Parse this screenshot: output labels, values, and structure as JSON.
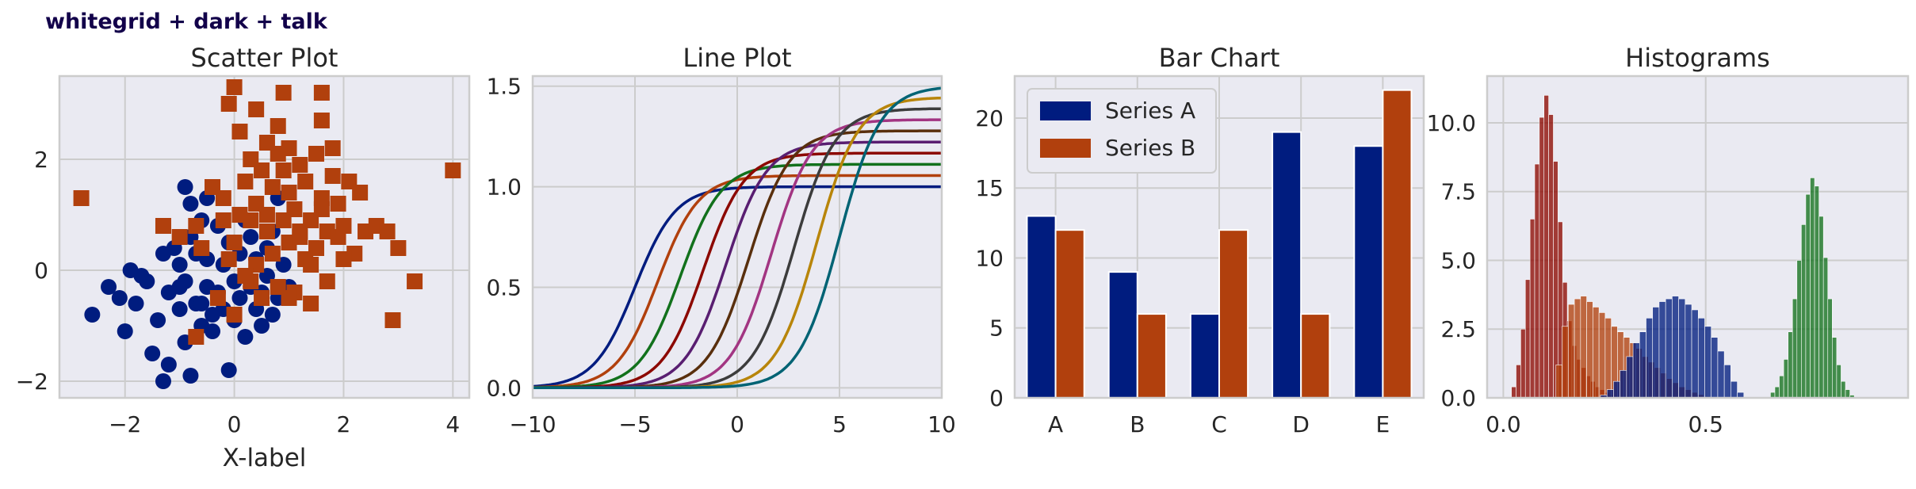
{
  "figure_title": "whitegrid + dark + talk",
  "colors": {
    "background": "#eaeaf2",
    "grid": "#cccccc",
    "spine": "#cccccc",
    "text": "#262626",
    "title_color": "#12004a",
    "palette": [
      "#001c7f",
      "#b1400d",
      "#12711c",
      "#8c0800",
      "#591e71",
      "#b8850a",
      "#a23582",
      "#3c3c3c",
      "#b8850a",
      "#006374"
    ]
  },
  "chart_data": [
    {
      "type": "scatter",
      "title": "Scatter Plot",
      "xlabel": "X-label",
      "ylabel": "",
      "xlim": [
        -3.2,
        4.3
      ],
      "ylim": [
        -2.3,
        3.5
      ],
      "xticks": [
        -2,
        0,
        2,
        4
      ],
      "xtick_labels": [
        "−2",
        "0",
        "2",
        "4"
      ],
      "yticks": [
        -2,
        0,
        2
      ],
      "ytick_labels": [
        "−2",
        "0",
        "2"
      ],
      "grid": true,
      "series": [
        {
          "marker": "circle",
          "color": "#001c7f",
          "points": [
            [
              -2.6,
              -0.8
            ],
            [
              -2.1,
              -0.5
            ],
            [
              -2.0,
              -1.1
            ],
            [
              -1.8,
              -0.6
            ],
            [
              -1.6,
              -0.2
            ],
            [
              -1.5,
              -1.5
            ],
            [
              -1.4,
              -0.9
            ],
            [
              -1.3,
              -2.0
            ],
            [
              -1.2,
              -1.7
            ],
            [
              -1.2,
              -0.4
            ],
            [
              -1.1,
              0.4
            ],
            [
              -1.0,
              -0.7
            ],
            [
              -1.0,
              0.1
            ],
            [
              -0.9,
              -1.3
            ],
            [
              -0.9,
              -0.2
            ],
            [
              -0.8,
              -1.9
            ],
            [
              -0.8,
              0.6
            ],
            [
              -0.8,
              1.2
            ],
            [
              -0.7,
              -0.6
            ],
            [
              -0.7,
              0.3
            ],
            [
              -0.6,
              -1.0
            ],
            [
              -0.6,
              0.9
            ],
            [
              -0.5,
              -0.3
            ],
            [
              -0.5,
              0.2
            ],
            [
              -0.4,
              -0.8
            ],
            [
              -0.4,
              -1.1
            ],
            [
              -0.3,
              0.8
            ],
            [
              -0.3,
              -0.4
            ],
            [
              -0.2,
              0.1
            ],
            [
              -0.2,
              -0.7
            ],
            [
              -0.1,
              -1.8
            ],
            [
              -0.1,
              0.5
            ],
            [
              0.0,
              -0.2
            ],
            [
              0.0,
              -0.9
            ],
            [
              0.1,
              0.3
            ],
            [
              0.1,
              -0.5
            ],
            [
              0.2,
              -1.2
            ],
            [
              0.2,
              0.9
            ],
            [
              0.3,
              -0.3
            ],
            [
              0.3,
              0.6
            ],
            [
              0.4,
              -0.7
            ],
            [
              0.4,
              0.2
            ],
            [
              0.5,
              -0.4
            ],
            [
              0.5,
              -1.0
            ],
            [
              0.6,
              0.4
            ],
            [
              0.6,
              -0.1
            ],
            [
              0.7,
              -0.8
            ],
            [
              0.7,
              0.7
            ],
            [
              0.8,
              1.3
            ],
            [
              0.8,
              -0.5
            ],
            [
              0.9,
              0.1
            ],
            [
              1.0,
              -0.3
            ],
            [
              -1.3,
              0.3
            ],
            [
              -1.7,
              -0.1
            ],
            [
              -2.3,
              -0.3
            ],
            [
              -1.9,
              0.0
            ],
            [
              -0.9,
              1.5
            ],
            [
              -0.5,
              1.3
            ],
            [
              -1.0,
              -0.3
            ],
            [
              -0.6,
              -0.6
            ]
          ]
        },
        {
          "marker": "square",
          "color": "#b1400d",
          "points": [
            [
              -2.8,
              1.3
            ],
            [
              -1.3,
              0.8
            ],
            [
              -1.0,
              0.6
            ],
            [
              -0.7,
              0.8
            ],
            [
              -0.7,
              -1.2
            ],
            [
              -0.6,
              0.4
            ],
            [
              -0.4,
              1.5
            ],
            [
              -0.3,
              -0.5
            ],
            [
              -0.2,
              1.3
            ],
            [
              -0.1,
              0.2
            ],
            [
              -0.1,
              3.0
            ],
            [
              0.0,
              0.5
            ],
            [
              0.0,
              -0.8
            ],
            [
              0.0,
              3.3
            ],
            [
              0.1,
              2.5
            ],
            [
              0.1,
              1.0
            ],
            [
              0.2,
              1.6
            ],
            [
              0.3,
              0.9
            ],
            [
              0.3,
              -0.2
            ],
            [
              0.3,
              2.0
            ],
            [
              0.4,
              1.2
            ],
            [
              0.4,
              0.1
            ],
            [
              0.4,
              2.9
            ],
            [
              0.5,
              1.8
            ],
            [
              0.5,
              -0.5
            ],
            [
              0.6,
              0.7
            ],
            [
              0.6,
              2.3
            ],
            [
              0.6,
              1.0
            ],
            [
              0.7,
              1.5
            ],
            [
              0.7,
              0.3
            ],
            [
              0.8,
              2.1
            ],
            [
              0.8,
              -0.3
            ],
            [
              0.9,
              1.8
            ],
            [
              0.9,
              0.9
            ],
            [
              0.9,
              3.2
            ],
            [
              1.0,
              0.5
            ],
            [
              1.0,
              1.4
            ],
            [
              1.0,
              2.2
            ],
            [
              1.1,
              -0.4
            ],
            [
              1.1,
              1.1
            ],
            [
              1.2,
              0.7
            ],
            [
              1.2,
              1.9
            ],
            [
              1.3,
              0.2
            ],
            [
              1.3,
              1.6
            ],
            [
              1.4,
              -0.6
            ],
            [
              1.4,
              0.9
            ],
            [
              1.5,
              2.1
            ],
            [
              1.5,
              0.4
            ],
            [
              1.6,
              1.3
            ],
            [
              1.6,
              2.7
            ],
            [
              1.6,
              3.2
            ],
            [
              1.7,
              0.7
            ],
            [
              1.7,
              -0.2
            ],
            [
              1.8,
              1.7
            ],
            [
              1.8,
              2.2
            ],
            [
              1.9,
              0.6
            ],
            [
              1.9,
              1.2
            ],
            [
              2.0,
              0.8
            ],
            [
              2.1,
              1.6
            ],
            [
              2.2,
              0.3
            ],
            [
              2.3,
              1.4
            ],
            [
              2.4,
              0.7
            ],
            [
              2.6,
              0.8
            ],
            [
              2.8,
              0.7
            ],
            [
              2.9,
              -0.9
            ],
            [
              3.0,
              0.4
            ],
            [
              3.3,
              -0.2
            ],
            [
              4.0,
              1.8
            ],
            [
              1.6,
              1.1
            ],
            [
              1.2,
              0.6
            ],
            [
              2.0,
              0.2
            ],
            [
              1.4,
              0.1
            ],
            [
              0.2,
              -0.1
            ],
            [
              -0.2,
              0.9
            ],
            [
              0.8,
              2.6
            ],
            [
              1.0,
              -0.5
            ]
          ]
        }
      ]
    },
    {
      "type": "line",
      "title": "Line Plot",
      "xlabel": "",
      "ylabel": "",
      "xlim": [
        -10,
        10
      ],
      "ylim": [
        -0.05,
        1.55
      ],
      "xticks": [
        -10,
        -5,
        0,
        5,
        10
      ],
      "xtick_labels": [
        "−10",
        "−5",
        "0",
        "5",
        "10"
      ],
      "yticks": [
        0.0,
        0.5,
        1.0,
        1.5
      ],
      "ytick_labels": [
        "0.0",
        "0.5",
        "1.0",
        "1.5"
      ],
      "grid": true,
      "series": [
        {
          "color": "#001c7f",
          "amplitude": 1.0,
          "center": -5.0
        },
        {
          "color": "#b1400d",
          "amplitude": 1.0556,
          "center": -3.889
        },
        {
          "color": "#12711c",
          "amplitude": 1.1111,
          "center": -2.778
        },
        {
          "color": "#8c0800",
          "amplitude": 1.1667,
          "center": -1.667
        },
        {
          "color": "#591e71",
          "amplitude": 1.2222,
          "center": -0.556
        },
        {
          "color": "#592f0d",
          "amplitude": 1.2778,
          "center": 0.556
        },
        {
          "color": "#a23582",
          "amplitude": 1.3333,
          "center": 1.667
        },
        {
          "color": "#3c3c3c",
          "amplitude": 1.3889,
          "center": 2.778
        },
        {
          "color": "#b8850a",
          "amplitude": 1.4444,
          "center": 3.889
        },
        {
          "color": "#006374",
          "amplitude": 1.5,
          "center": 5.0
        }
      ]
    },
    {
      "type": "bar",
      "title": "Bar Chart",
      "xlabel": "",
      "ylabel": "",
      "categories": [
        "A",
        "B",
        "C",
        "D",
        "E"
      ],
      "ylim": [
        0,
        23
      ],
      "yticks": [
        0,
        5,
        10,
        15,
        20
      ],
      "ytick_labels": [
        "0",
        "5",
        "10",
        "15",
        "20"
      ],
      "grid": true,
      "legend_position": "top-left",
      "series": [
        {
          "name": "Series A",
          "color": "#001c7f",
          "values": [
            13,
            9,
            6,
            19,
            18
          ]
        },
        {
          "name": "Series B",
          "color": "#b1400d",
          "values": [
            12,
            6,
            12,
            6,
            22
          ]
        }
      ]
    },
    {
      "type": "histogram",
      "title": "Histograms",
      "xlabel": "",
      "ylabel": "",
      "xlim": [
        -0.04,
        1.0
      ],
      "ylim": [
        0,
        11.7
      ],
      "xticks": [
        0.0,
        0.5
      ],
      "xtick_labels": [
        "0.0",
        "0.5"
      ],
      "yticks": [
        0.0,
        2.5,
        5.0,
        7.5,
        10.0
      ],
      "ytick_labels": [
        "0.0",
        "2.5",
        "5.0",
        "7.5",
        "10.0"
      ],
      "grid": true,
      "series": [
        {
          "color": "#8c0800",
          "bin_start": 0.02,
          "bin_width": 0.0115,
          "values": [
            0.4,
            1.2,
            2.5,
            4.3,
            6.5,
            8.5,
            10.2,
            11.0,
            10.3,
            8.6,
            6.4,
            4.2,
            2.8,
            1.9,
            1.4,
            1.1,
            0.8,
            0.6,
            0.4,
            0.3,
            0.2,
            0.1
          ]
        },
        {
          "color": "#b1400d",
          "bin_start": 0.13,
          "bin_width": 0.0152,
          "values": [
            1.2,
            2.6,
            3.4,
            3.6,
            3.7,
            3.5,
            3.3,
            3.1,
            2.9,
            2.6,
            2.4,
            2.2,
            2.0,
            1.8,
            1.5,
            1.3,
            1.1,
            0.9,
            0.7,
            0.55,
            0.4,
            0.3,
            0.2,
            0.12,
            0.05
          ]
        },
        {
          "color": "#001c7f",
          "bin_start": 0.24,
          "bin_width": 0.0161,
          "values": [
            0.1,
            0.3,
            0.6,
            1.0,
            1.5,
            2.0,
            2.4,
            2.9,
            3.3,
            3.5,
            3.6,
            3.7,
            3.6,
            3.4,
            3.2,
            2.9,
            2.6,
            2.2,
            1.7,
            1.2,
            0.6,
            0.2
          ]
        },
        {
          "color": "#12711c",
          "bin_start": 0.66,
          "bin_width": 0.0109,
          "values": [
            0.2,
            0.4,
            0.8,
            1.4,
            2.4,
            3.6,
            5.0,
            6.3,
            7.4,
            8.0,
            7.7,
            6.6,
            5.1,
            3.6,
            2.2,
            1.2,
            0.6,
            0.3,
            0.1
          ]
        }
      ]
    }
  ]
}
